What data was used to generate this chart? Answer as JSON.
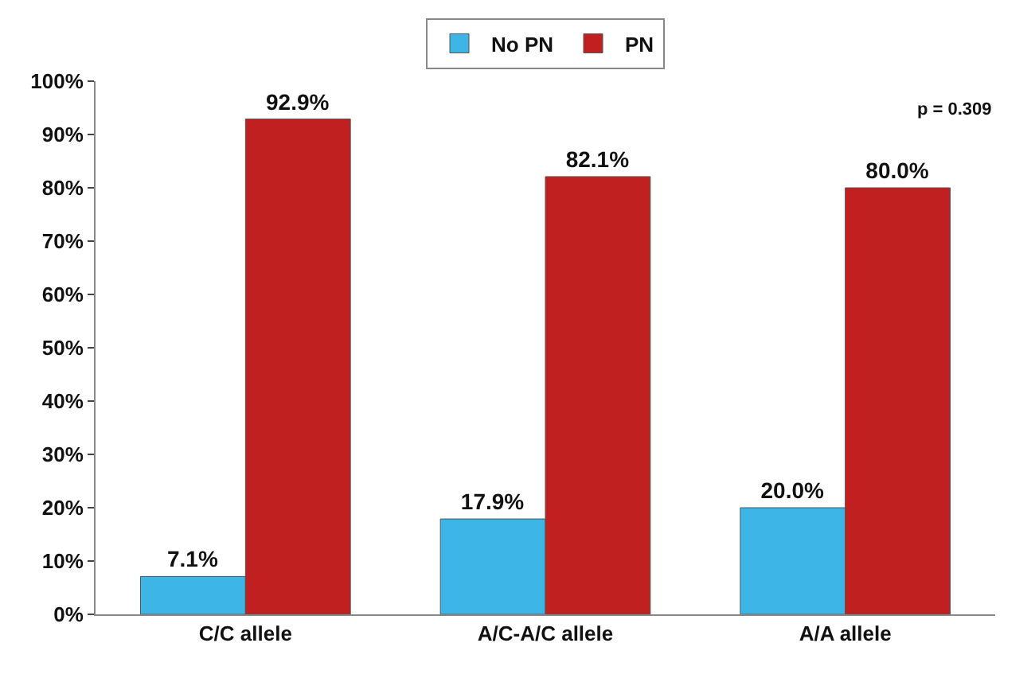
{
  "chart_data": {
    "type": "bar",
    "categories": [
      "C/C allele",
      "A/C-A/C allele",
      "A/A allele"
    ],
    "series": [
      {
        "name": "No PN",
        "color": "#3db5e6",
        "values": [
          7.1,
          17.9,
          20.0
        ],
        "value_labels": [
          "7.1%",
          "17.9%",
          "20.0%"
        ]
      },
      {
        "name": "PN",
        "color": "#c0201f",
        "values": [
          92.9,
          82.1,
          80.0
        ],
        "value_labels": [
          "92.9%",
          "82.1%",
          "80.0%"
        ]
      }
    ],
    "ylim": [
      0,
      100
    ],
    "yticks": [
      {
        "value": 0,
        "label": "0%"
      },
      {
        "value": 10,
        "label": "10%"
      },
      {
        "value": 20,
        "label": "20%"
      },
      {
        "value": 30,
        "label": "30%"
      },
      {
        "value": 40,
        "label": "40%"
      },
      {
        "value": 50,
        "label": "50%"
      },
      {
        "value": 60,
        "label": "60%"
      },
      {
        "value": 70,
        "label": "70%"
      },
      {
        "value": 80,
        "label": "80%"
      },
      {
        "value": 90,
        "label": "90%"
      },
      {
        "value": 100,
        "label": "100%"
      }
    ],
    "annotations": [
      "p = 0.309"
    ],
    "legend": "top"
  }
}
